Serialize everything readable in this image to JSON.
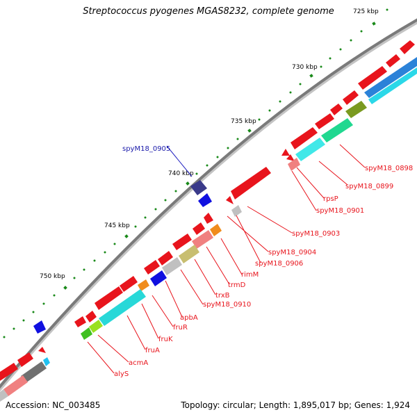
{
  "title": "Streptococcus pyogenes MGAS8232, complete genome",
  "footer": {
    "accession": "Accession: NC_003485",
    "stats": "Topology: circular; Length: 1,895,017 bp; Genes: 1,924"
  },
  "ruler": {
    "labels": [
      "725 kbp",
      "730 kbp",
      "735 kbp",
      "740 kbp",
      "745 kbp",
      "750 kbp"
    ]
  },
  "gene_labels": [
    {
      "text": "spyM18_0898",
      "color": "#e8141c"
    },
    {
      "text": "spyM18_0899",
      "color": "#e8141c"
    },
    {
      "text": "rpsP",
      "color": "#e8141c"
    },
    {
      "text": "spyM18_0901",
      "color": "#e8141c"
    },
    {
      "text": "spyM18_0903",
      "color": "#e8141c"
    },
    {
      "text": "spyM18_0904",
      "color": "#e8141c"
    },
    {
      "text": "spyM18_0906",
      "color": "#e8141c"
    },
    {
      "text": "rimM",
      "color": "#e8141c"
    },
    {
      "text": "trmD",
      "color": "#e8141c"
    },
    {
      "text": "trxB",
      "color": "#e8141c"
    },
    {
      "text": "spyM18_0910",
      "color": "#e8141c"
    },
    {
      "text": "apbA",
      "color": "#e8141c"
    },
    {
      "text": "fruR",
      "color": "#e8141c"
    },
    {
      "text": "fruK",
      "color": "#e8141c"
    },
    {
      "text": "fruA",
      "color": "#e8141c"
    },
    {
      "text": "acmA",
      "color": "#e8141c"
    },
    {
      "text": "alyS",
      "color": "#e8141c"
    },
    {
      "text": "spyM18_0905",
      "color": "#1a1aaa"
    }
  ],
  "colors": {
    "backbone": "#7a7a7a",
    "forward_gene": "#e8141c",
    "reverse_gene": "#1010e0",
    "tick": "#1a8a1a",
    "label_line_red": "#e8141c",
    "label_line_blue": "#2020c0"
  }
}
